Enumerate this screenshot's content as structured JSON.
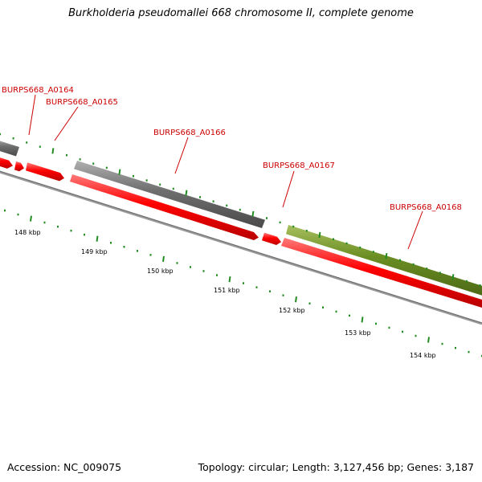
{
  "title": "Burkholderia pseudomallei 668 chromosome II, complete genome",
  "accession": "Accession: NC_009075",
  "summary": "Topology: circular; Length: 3,127,456 bp; Genes: 3,187",
  "colors": {
    "gene_label": "#cc0000",
    "tick": "#228b22",
    "cds": "#ff0000",
    "gene": "#6e6e6e",
    "gene_alt": "#6b8e23",
    "backbone": "#888888"
  },
  "gene_labels": [
    "BURPS668_A0164",
    "BURPS668_A0165",
    "BURPS668_A0166",
    "BURPS668_A0167",
    "BURPS668_A0168"
  ],
  "scale_labels": [
    "148 kbp",
    "149 kbp",
    "150 kbp",
    "151 kbp",
    "152 kbp",
    "153 kbp",
    "154 kbp"
  ]
}
